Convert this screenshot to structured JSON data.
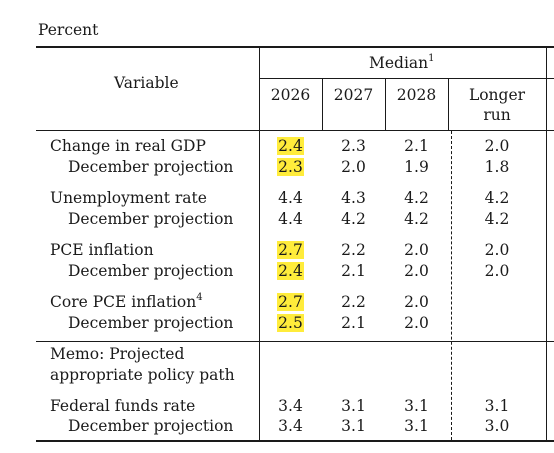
{
  "unit_label": "Percent",
  "header": {
    "variable": "Variable",
    "median": "Median",
    "median_note": "1",
    "years": [
      "2026",
      "2027",
      "2028"
    ],
    "longer_run_1": "Longer",
    "longer_run_2": "run"
  },
  "highlight_color": "#ffec3b",
  "rows": [
    {
      "label": "Change in real GDP",
      "v2026": "2.4",
      "v2027": "2.3",
      "v2028": "2.1",
      "lr": "2.0",
      "highlighted": true
    },
    {
      "label": "December projection",
      "v2026": "2.3",
      "v2027": "2.0",
      "v2028": "1.9",
      "lr": "1.8",
      "highlighted": true
    },
    {
      "label": "Unemployment rate",
      "v2026": "4.4",
      "v2027": "4.3",
      "v2028": "4.2",
      "lr": "4.2",
      "highlighted": false
    },
    {
      "label": "December projection",
      "v2026": "4.4",
      "v2027": "4.2",
      "v2028": "4.2",
      "lr": "4.2",
      "highlighted": false
    },
    {
      "label": "PCE inflation",
      "v2026": "2.7",
      "v2027": "2.2",
      "v2028": "2.0",
      "lr": "2.0",
      "highlighted": true
    },
    {
      "label": "December projection",
      "v2026": "2.4",
      "v2027": "2.1",
      "v2028": "2.0",
      "lr": "2.0",
      "highlighted": true
    },
    {
      "label": "Core PCE inflation",
      "note": "4",
      "v2026": "2.7",
      "v2027": "2.2",
      "v2028": "2.0",
      "lr": "",
      "highlighted": true
    },
    {
      "label": "December projection",
      "v2026": "2.5",
      "v2027": "2.1",
      "v2028": "2.0",
      "lr": "",
      "highlighted": true
    }
  ],
  "memo_line_1": "Memo: Projected",
  "memo_line_2": "appropriate policy path",
  "policy_rows": [
    {
      "label": "Federal funds rate",
      "v2026": "3.4",
      "v2027": "3.1",
      "v2028": "3.1",
      "lr": "3.1"
    },
    {
      "label": "December projection",
      "v2026": "3.4",
      "v2027": "3.1",
      "v2028": "3.1",
      "lr": "3.0"
    }
  ]
}
